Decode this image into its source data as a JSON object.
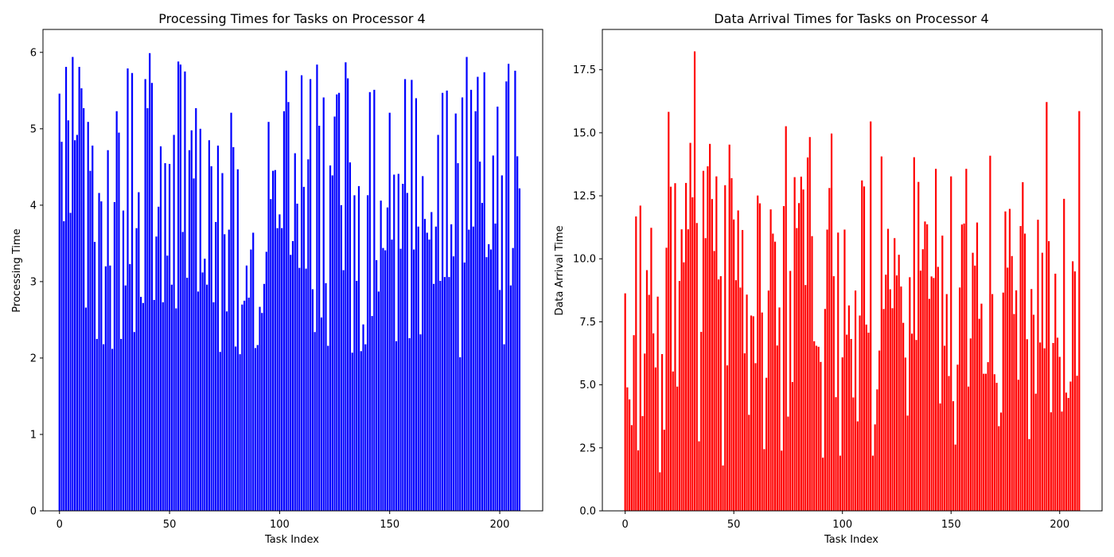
{
  "chart_data": [
    {
      "type": "bar",
      "title": "Processing Times for Tasks on Processor 4",
      "xlabel": "Task Index",
      "ylabel": "Processing Time",
      "color": "#0000ff",
      "xlim": [
        -7.5,
        219.5
      ],
      "ylim": [
        0,
        6.3
      ],
      "xticks": [
        0,
        50,
        100,
        150,
        200
      ],
      "yticks": [
        0,
        1,
        2,
        3,
        4,
        5,
        6
      ],
      "ytick_labels": [
        "0",
        "1",
        "2",
        "3",
        "4",
        "5",
        "6"
      ],
      "grid": false,
      "values": [
        5.46,
        4.83,
        3.79,
        5.81,
        5.11,
        3.9,
        5.94,
        4.85,
        4.92,
        5.81,
        5.53,
        5.27,
        2.66,
        5.09,
        4.45,
        4.78,
        3.52,
        2.25,
        4.16,
        4.05,
        2.18,
        3.2,
        4.72,
        3.21,
        2.12,
        4.04,
        5.23,
        4.95,
        2.25,
        3.93,
        2.95,
        5.79,
        3.23,
        5.73,
        2.34,
        3.7,
        4.17,
        2.8,
        2.72,
        5.65,
        5.27,
        5.99,
        5.6,
        2.76,
        3.59,
        3.98,
        4.77,
        2.73,
        4.55,
        3.34,
        4.54,
        2.96,
        4.92,
        2.65,
        5.88,
        5.84,
        3.65,
        5.75,
        3.05,
        4.72,
        4.98,
        4.35,
        5.27,
        2.87,
        5.0,
        3.12,
        3.3,
        2.96,
        4.85,
        4.51,
        2.73,
        3.78,
        4.78,
        2.08,
        4.42,
        3.62,
        2.61,
        3.68,
        5.21,
        4.76,
        2.15,
        4.47,
        2.05,
        2.7,
        2.75,
        3.21,
        2.79,
        3.42,
        3.64,
        2.13,
        2.17,
        2.67,
        2.59,
        2.97,
        3.39,
        5.09,
        4.08,
        4.45,
        4.46,
        3.7,
        3.88,
        3.7,
        5.23,
        5.76,
        5.35,
        3.35,
        3.53,
        4.68,
        4.02,
        3.18,
        5.7,
        4.24,
        3.17,
        4.6,
        5.65,
        2.9,
        2.34,
        5.84,
        5.04,
        2.53,
        5.41,
        2.98,
        2.16,
        4.52,
        4.39,
        5.16,
        5.45,
        5.47,
        4.0,
        3.15,
        5.87,
        5.66,
        4.56,
        2.07,
        4.13,
        3.01,
        4.25,
        2.09,
        2.44,
        2.18,
        4.13,
        5.48,
        2.55,
        5.51,
        3.28,
        2.87,
        4.06,
        3.44,
        3.41,
        3.97,
        5.21,
        3.55,
        4.4,
        2.22,
        4.41,
        3.43,
        4.28,
        5.65,
        4.16,
        2.26,
        5.64,
        3.42,
        5.4,
        3.72,
        2.31,
        4.38,
        3.82,
        3.64,
        3.55,
        3.91,
        2.97,
        3.72,
        4.92,
        3.01,
        5.47,
        3.06,
        5.5,
        3.06,
        3.75,
        3.33,
        5.2,
        4.55,
        2.01,
        5.41,
        3.25,
        5.94,
        3.68,
        5.51,
        3.72,
        5.23,
        5.68,
        4.57,
        4.03,
        5.74,
        3.32,
        3.49,
        3.42,
        4.65,
        3.76,
        5.29,
        2.89,
        4.39,
        2.18,
        5.62,
        5.85,
        2.95,
        3.44,
        5.76,
        4.64,
        4.22
      ]
    },
    {
      "type": "bar",
      "title": "Data Arrival Times for Tasks on Processor 4",
      "xlabel": "Task Index",
      "ylabel": "Data Arrival Time",
      "color": "#ff0000",
      "xlim": [
        -10.5,
        219.5
      ],
      "ylim": [
        0,
        19.1
      ],
      "xticks": [
        0,
        50,
        100,
        150,
        200
      ],
      "yticks": [
        0,
        2.5,
        5,
        7.5,
        10,
        12.5,
        15,
        17.5
      ],
      "ytick_labels": [
        "0.0",
        "2.5",
        "5.0",
        "7.5",
        "10.0",
        "12.5",
        "15.0",
        "17.5"
      ],
      "grid": false,
      "values": [
        8.63,
        4.9,
        4.42,
        3.4,
        6.97,
        11.68,
        2.4,
        12.11,
        3.76,
        6.24,
        9.55,
        8.57,
        11.23,
        7.04,
        5.69,
        8.5,
        1.53,
        6.22,
        3.22,
        10.44,
        15.83,
        12.86,
        5.53,
        13.0,
        4.93,
        9.12,
        11.17,
        9.86,
        13.01,
        11.17,
        14.6,
        12.44,
        18.23,
        11.42,
        2.76,
        7.1,
        13.49,
        10.82,
        13.67,
        14.56,
        12.37,
        10.31,
        13.27,
        9.18,
        9.31,
        1.8,
        12.92,
        5.77,
        14.53,
        13.2,
        11.56,
        9.15,
        11.92,
        8.86,
        11.14,
        6.25,
        8.58,
        3.81,
        7.75,
        7.72,
        5.86,
        12.51,
        12.2,
        7.87,
        2.45,
        5.28,
        8.74,
        11.96,
        11.0,
        10.68,
        6.56,
        8.07,
        2.39,
        12.09,
        15.26,
        3.74,
        9.52,
        5.11,
        13.24,
        11.22,
        12.21,
        13.26,
        12.75,
        8.96,
        14.02,
        14.83,
        10.9,
        6.73,
        6.55,
        6.51,
        5.91,
        2.11,
        8.01,
        11.16,
        12.81,
        14.97,
        9.31,
        4.51,
        11.04,
        2.19,
        6.09,
        11.16,
        6.99,
        8.15,
        6.82,
        4.5,
        8.74,
        3.55,
        7.75,
        13.11,
        12.87,
        7.39,
        7.07,
        15.45,
        2.19,
        3.43,
        4.82,
        6.36,
        14.06,
        8.01,
        9.37,
        11.19,
        8.79,
        8.04,
        10.82,
        9.34,
        10.16,
        8.9,
        7.46,
        6.08,
        3.78,
        9.27,
        7.03,
        14.03,
        6.78,
        13.05,
        9.53,
        10.38,
        11.48,
        11.37,
        8.41,
        9.3,
        9.24,
        13.57,
        9.68,
        4.26,
        10.92,
        6.55,
        8.6,
        5.35,
        13.27,
        4.35,
        2.63,
        5.8,
        8.86,
        11.36,
        11.4,
        13.57,
        4.93,
        6.84,
        10.24,
        9.73,
        11.44,
        7.62,
        8.22,
        5.44,
        5.44,
        5.9,
        14.09,
        8.6,
        5.42,
        5.08,
        3.36,
        3.9,
        8.66,
        11.88,
        9.65,
        11.98,
        10.11,
        7.81,
        8.75,
        5.2,
        11.3,
        13.04,
        11.0,
        6.81,
        2.85,
        8.8,
        7.78,
        4.65,
        11.55,
        6.68,
        10.24,
        6.45,
        16.22,
        10.7,
        3.91,
        6.66,
        9.41,
        6.87,
        6.11,
        3.94,
        12.38,
        4.69,
        4.48,
        5.13,
        9.9,
        9.5,
        5.36,
        15.86
      ]
    }
  ]
}
